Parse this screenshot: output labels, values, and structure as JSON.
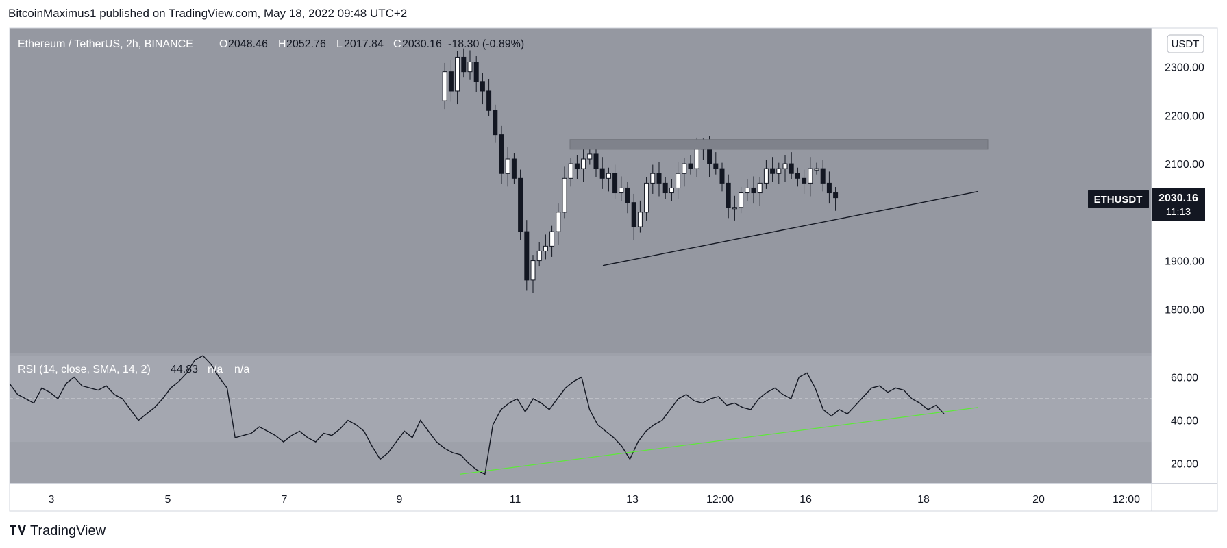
{
  "header": {
    "publisher": "BitcoinMaximus1 published on TradingView.com, May 18, 2022 09:48 UTC+2"
  },
  "footer": {
    "brand": "TradingView",
    "logo_icon": "tradingview-logo-icon"
  },
  "colors": {
    "price_pane_bg": "#9598a1",
    "rsi_pane_bg": "#9ea1aa",
    "rsi_band_bg": "#a4a7b0",
    "resistance_zone": "#7f828b",
    "support_line": "#131722",
    "rsi_trendline": "#5ee83a",
    "ticker_bg": "#131722"
  },
  "chart_data": [
    {
      "type": "candlestick",
      "symbol_label": "Ethereum / TetherUS, 2h, BINANCE",
      "ohlc": {
        "o_label": "O",
        "o": "2048.46",
        "h_label": "H",
        "h": "2052.76",
        "l_label": "L",
        "l": "2017.84",
        "c_label": "C",
        "c": "2030.16",
        "change": "-18.30 (-0.89%)"
      },
      "y_axis": {
        "unit_badge": "USDT",
        "ticks": [
          "2300.00",
          "2200.00",
          "2100.00",
          "1900.00",
          "1800.00"
        ],
        "ylim": [
          1710,
          2380
        ]
      },
      "x_axis": {
        "ticks": [
          "3",
          "5",
          "7",
          "9",
          "11",
          "13",
          "12:00",
          "16",
          "18",
          "20",
          "12:00"
        ]
      },
      "last_price": {
        "ticker": "ETHUSDT",
        "price": "2030.16",
        "countdown": "11:13"
      },
      "resistance_zone": {
        "low": 2130,
        "high": 2150
      },
      "ascending_support": {
        "from": 1890,
        "to": 2043
      },
      "candles_visible_range": "May 9 – May 18",
      "candle_path": [
        2230,
        2290,
        2250,
        2320,
        2290,
        2310,
        2270,
        2250,
        2210,
        2160,
        2080,
        2110,
        2070,
        1960,
        1860,
        1900,
        1920,
        1930,
        1960,
        2000,
        2070,
        2100,
        2090,
        2110,
        2120,
        2090,
        2070,
        2080,
        2040,
        2050,
        2020,
        1970,
        2000,
        2060,
        2080,
        2060,
        2040,
        2050,
        2080,
        2100,
        2090,
        2130,
        2140,
        2100,
        2090,
        2060,
        2010,
        2010,
        2040,
        2050,
        2040,
        2060,
        2090,
        2080,
        2090,
        2100,
        2080,
        2070,
        2060,
        2090,
        2090,
        2060,
        2040,
        2030
      ]
    },
    {
      "type": "line",
      "indicator_label": "RSI (14, close, SMA, 14, 2)",
      "value": "44.83",
      "extra": [
        "n/a",
        "n/a"
      ],
      "y_axis": {
        "ticks": [
          "60.00",
          "40.00",
          "20.00"
        ],
        "ylim": [
          11,
          71
        ]
      },
      "bands": {
        "upper": 50,
        "lower": 30
      },
      "trendline": {
        "from": 15,
        "to": 46
      },
      "series": [
        {
          "values": [
            57,
            52,
            50,
            48,
            55,
            53,
            50,
            57,
            60,
            56,
            55,
            54,
            56,
            52,
            50,
            45,
            40,
            43,
            46,
            50,
            55,
            58,
            62,
            68,
            70,
            66,
            60,
            55,
            32,
            33,
            34,
            37,
            35,
            33,
            30,
            33,
            35,
            32,
            30,
            34,
            33,
            36,
            40,
            38,
            35,
            28,
            22,
            25,
            30,
            35,
            32,
            40,
            35,
            30,
            27,
            25,
            24,
            20,
            17,
            15,
            38,
            45,
            48,
            50,
            44,
            50,
            48,
            45,
            50,
            55,
            58,
            60,
            45,
            38,
            35,
            32,
            28,
            22,
            30,
            35,
            38,
            40,
            45,
            50,
            52,
            49,
            48,
            50,
            51,
            47,
            48,
            46,
            45,
            50,
            53,
            55,
            52,
            50,
            60,
            62,
            55,
            45,
            42,
            45,
            43,
            47,
            51,
            55,
            56,
            53,
            55,
            54,
            50,
            48,
            45,
            47,
            43
          ]
        }
      ]
    }
  ]
}
